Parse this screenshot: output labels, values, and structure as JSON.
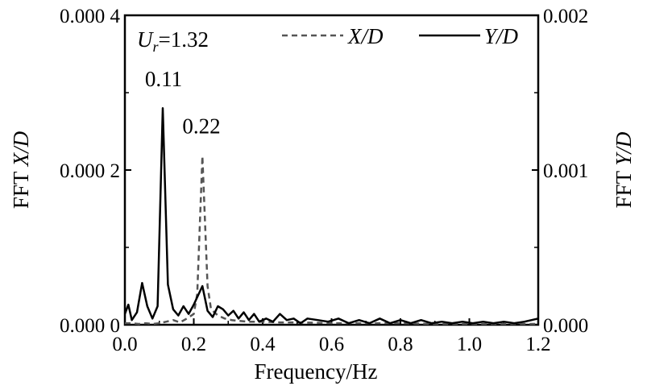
{
  "chart_data": {
    "type": "line",
    "xlabel": "Frequency/Hz",
    "ylabel_left": {
      "prefix": "FFT ",
      "var": "X/D"
    },
    "ylabel_right": {
      "prefix": "FFT ",
      "var": "Y/D"
    },
    "xlim": [
      0,
      1.2
    ],
    "ylim_left": [
      0,
      0.0004
    ],
    "ylim_right": [
      0,
      0.002
    ],
    "x_ticks": [
      "0.0",
      "0.2",
      "0.4",
      "0.6",
      "0.8",
      "1.0",
      "1.2"
    ],
    "x_tick_values": [
      0,
      0.2,
      0.4,
      0.6,
      0.8,
      1.0,
      1.2
    ],
    "y_left_ticks": [
      "0.000 0",
      "0.000 2",
      "0.000 4"
    ],
    "y_left_tick_values": [
      0,
      0.0002,
      0.0004
    ],
    "y_right_ticks": [
      "0.000",
      "0.001",
      "0.002"
    ],
    "y_right_tick_values": [
      0,
      0.001,
      0.002
    ],
    "ur_label": {
      "sym": "U",
      "sub": "r",
      "rest": "=1.32"
    },
    "annotations": [
      {
        "text": "0.11",
        "x": 0.11,
        "y_right": 0.00148
      },
      {
        "text": "0.22",
        "x": 0.22,
        "y_left": 0.000235
      }
    ],
    "series": [
      {
        "name": "X/D",
        "axis": "left",
        "style": "dashed",
        "color": "#555555",
        "points": [
          [
            0.0,
            2e-06
          ],
          [
            0.02,
            2e-06
          ],
          [
            0.04,
            1e-06
          ],
          [
            0.06,
            2e-06
          ],
          [
            0.08,
            1e-06
          ],
          [
            0.1,
            2e-06
          ],
          [
            0.12,
            4e-06
          ],
          [
            0.14,
            6e-06
          ],
          [
            0.16,
            3e-06
          ],
          [
            0.18,
            8e-06
          ],
          [
            0.2,
            1.4e-05
          ],
          [
            0.21,
            4e-05
          ],
          [
            0.225,
            0.000218
          ],
          [
            0.24,
            5e-05
          ],
          [
            0.25,
            2e-05
          ],
          [
            0.27,
            1.2e-05
          ],
          [
            0.29,
            8e-06
          ],
          [
            0.31,
            6e-06
          ],
          [
            0.33,
            5e-06
          ],
          [
            0.36,
            4e-06
          ],
          [
            0.4,
            4e-06
          ],
          [
            0.45,
            3e-06
          ],
          [
            0.5,
            3e-06
          ],
          [
            0.6,
            2e-06
          ],
          [
            0.7,
            2e-06
          ],
          [
            0.8,
            2e-06
          ],
          [
            0.9,
            1e-06
          ],
          [
            1.0,
            1e-06
          ],
          [
            1.1,
            1e-06
          ],
          [
            1.2,
            1e-06
          ]
        ]
      },
      {
        "name": "Y/D",
        "axis": "right",
        "style": "solid",
        "color": "#000000",
        "points": [
          [
            0.0,
            7e-05
          ],
          [
            0.01,
            0.00013
          ],
          [
            0.02,
            3e-05
          ],
          [
            0.035,
            8e-05
          ],
          [
            0.05,
            0.00027
          ],
          [
            0.065,
            0.00012
          ],
          [
            0.08,
            4e-05
          ],
          [
            0.095,
            0.00012
          ],
          [
            0.11,
            0.0014
          ],
          [
            0.125,
            0.00026
          ],
          [
            0.14,
            0.0001
          ],
          [
            0.155,
            6e-05
          ],
          [
            0.17,
            0.00012
          ],
          [
            0.185,
            7e-05
          ],
          [
            0.2,
            0.00013
          ],
          [
            0.225,
            0.00025
          ],
          [
            0.24,
            9e-05
          ],
          [
            0.255,
            5e-05
          ],
          [
            0.27,
            0.00012
          ],
          [
            0.285,
            0.0001
          ],
          [
            0.3,
            6e-05
          ],
          [
            0.315,
            9e-05
          ],
          [
            0.33,
            4e-05
          ],
          [
            0.345,
            8e-05
          ],
          [
            0.36,
            3e-05
          ],
          [
            0.375,
            7e-05
          ],
          [
            0.39,
            2e-05
          ],
          [
            0.41,
            4e-05
          ],
          [
            0.43,
            2e-05
          ],
          [
            0.45,
            7e-05
          ],
          [
            0.47,
            3e-05
          ],
          [
            0.49,
            4e-05
          ],
          [
            0.51,
            1e-05
          ],
          [
            0.53,
            4e-05
          ],
          [
            0.56,
            3e-05
          ],
          [
            0.59,
            2e-05
          ],
          [
            0.62,
            4e-05
          ],
          [
            0.65,
            1e-05
          ],
          [
            0.68,
            3e-05
          ],
          [
            0.71,
            1e-05
          ],
          [
            0.74,
            4e-05
          ],
          [
            0.77,
            1e-05
          ],
          [
            0.8,
            3e-05
          ],
          [
            0.83,
            1e-05
          ],
          [
            0.86,
            3e-05
          ],
          [
            0.89,
            1e-05
          ],
          [
            0.92,
            2e-05
          ],
          [
            0.95,
            1e-05
          ],
          [
            0.98,
            2e-05
          ],
          [
            1.01,
            1e-05
          ],
          [
            1.04,
            2e-05
          ],
          [
            1.07,
            1e-05
          ],
          [
            1.1,
            2e-05
          ],
          [
            1.13,
            1e-05
          ],
          [
            1.16,
            2e-05
          ],
          [
            1.2,
            4e-05
          ]
        ]
      }
    ],
    "legend_position": "top-right",
    "grid": false
  }
}
